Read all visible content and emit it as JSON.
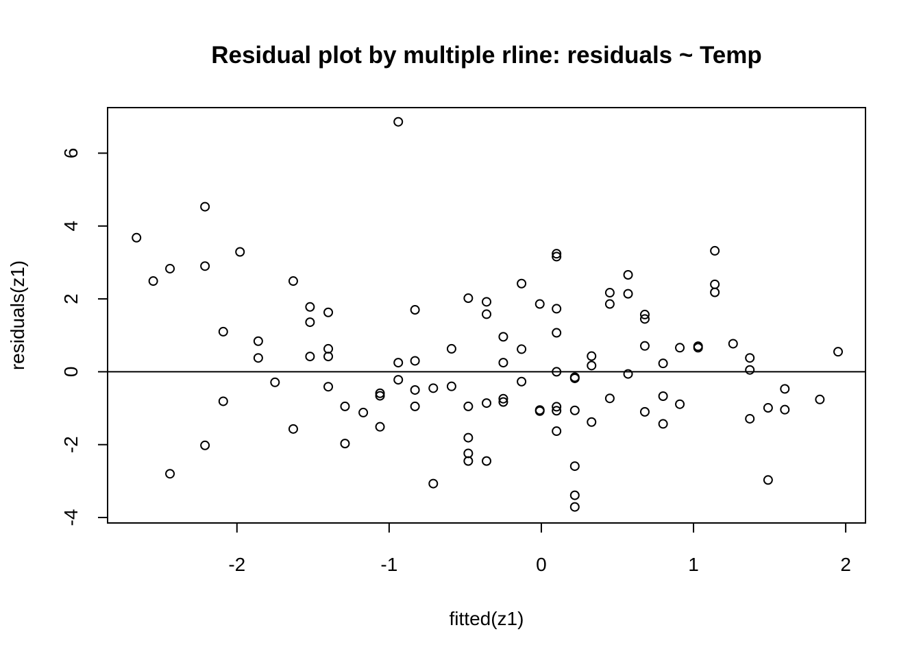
{
  "chart_data": {
    "type": "scatter",
    "title": "Residual plot by multiple rline: residuals ~ Temp",
    "xlabel": "fitted(z1)",
    "ylabel": "residuals(z1)",
    "xlim": [
      -2.85,
      2.13
    ],
    "ylim": [
      -4.15,
      7.25
    ],
    "xticks": [
      -2,
      -1,
      0,
      1,
      2
    ],
    "yticks": [
      -4,
      -2,
      0,
      2,
      4,
      6
    ],
    "xtick_labels": [
      "-2",
      "-1",
      "0",
      "1",
      "2"
    ],
    "ytick_labels": [
      "-4",
      "-2",
      "0",
      "2",
      "4",
      "6"
    ],
    "reference_line_y": 0,
    "grid": false,
    "legend": "none",
    "points": [
      [
        -2.66,
        3.68
      ],
      [
        -2.55,
        2.49
      ],
      [
        -2.44,
        2.83
      ],
      [
        -2.44,
        -2.8
      ],
      [
        -2.21,
        4.53
      ],
      [
        -2.21,
        2.9
      ],
      [
        -2.21,
        -2.02
      ],
      [
        -2.09,
        1.1
      ],
      [
        -2.09,
        -0.81
      ],
      [
        -1.98,
        3.29
      ],
      [
        -1.86,
        0.84
      ],
      [
        -1.86,
        0.38
      ],
      [
        -1.75,
        -0.29
      ],
      [
        -1.63,
        2.49
      ],
      [
        -1.63,
        -1.57
      ],
      [
        -1.52,
        1.78
      ],
      [
        -1.52,
        1.36
      ],
      [
        -1.52,
        0.42
      ],
      [
        -1.4,
        1.63
      ],
      [
        -1.4,
        0.63
      ],
      [
        -1.4,
        0.42
      ],
      [
        -1.4,
        -0.41
      ],
      [
        -1.29,
        -0.95
      ],
      [
        -1.29,
        -1.97
      ],
      [
        -1.17,
        -1.12
      ],
      [
        -1.06,
        -0.59
      ],
      [
        -1.06,
        -0.66
      ],
      [
        -1.06,
        -1.51
      ],
      [
        -0.94,
        6.86
      ],
      [
        -0.94,
        0.25
      ],
      [
        -0.94,
        -0.22
      ],
      [
        -0.83,
        1.7
      ],
      [
        -0.83,
        0.3
      ],
      [
        -0.83,
        -0.5
      ],
      [
        -0.83,
        -0.95
      ],
      [
        -0.71,
        -0.45
      ],
      [
        -0.71,
        -3.07
      ],
      [
        -0.59,
        0.63
      ],
      [
        -0.59,
        -0.4
      ],
      [
        -0.48,
        2.02
      ],
      [
        -0.48,
        -0.95
      ],
      [
        -0.48,
        -1.81
      ],
      [
        -0.48,
        -2.24
      ],
      [
        -0.48,
        -2.45
      ],
      [
        -0.36,
        1.92
      ],
      [
        -0.36,
        1.58
      ],
      [
        -0.36,
        -0.86
      ],
      [
        -0.36,
        -2.45
      ],
      [
        -0.25,
        0.96
      ],
      [
        -0.25,
        0.25
      ],
      [
        -0.25,
        -0.74
      ],
      [
        -0.25,
        -0.83
      ],
      [
        -0.13,
        2.42
      ],
      [
        -0.13,
        0.62
      ],
      [
        -0.13,
        -0.27
      ],
      [
        -0.01,
        1.86
      ],
      [
        -0.01,
        -1.05
      ],
      [
        -0.01,
        -1.08
      ],
      [
        0.1,
        3.24
      ],
      [
        0.1,
        3.16
      ],
      [
        0.1,
        1.73
      ],
      [
        0.1,
        1.07
      ],
      [
        0.1,
        0.0
      ],
      [
        0.1,
        -0.96
      ],
      [
        0.1,
        -1.07
      ],
      [
        0.1,
        -1.63
      ],
      [
        0.22,
        -0.15
      ],
      [
        0.22,
        -0.18
      ],
      [
        0.22,
        -1.06
      ],
      [
        0.22,
        -2.59
      ],
      [
        0.22,
        -3.39
      ],
      [
        0.22,
        -3.71
      ],
      [
        0.33,
        0.43
      ],
      [
        0.33,
        0.17
      ],
      [
        0.33,
        -1.38
      ],
      [
        0.45,
        2.17
      ],
      [
        0.45,
        1.86
      ],
      [
        0.45,
        -0.73
      ],
      [
        0.57,
        2.66
      ],
      [
        0.57,
        2.14
      ],
      [
        0.57,
        -0.06
      ],
      [
        0.68,
        1.57
      ],
      [
        0.68,
        1.45
      ],
      [
        0.68,
        0.71
      ],
      [
        0.68,
        -1.1
      ],
      [
        0.8,
        0.23
      ],
      [
        0.8,
        -0.67
      ],
      [
        0.8,
        -1.43
      ],
      [
        0.91,
        0.66
      ],
      [
        0.91,
        -0.89
      ],
      [
        1.03,
        0.7
      ],
      [
        1.03,
        0.66
      ],
      [
        1.14,
        3.32
      ],
      [
        1.14,
        2.4
      ],
      [
        1.14,
        2.18
      ],
      [
        1.26,
        0.77
      ],
      [
        1.37,
        0.38
      ],
      [
        1.37,
        0.05
      ],
      [
        1.37,
        -1.29
      ],
      [
        1.49,
        -0.99
      ],
      [
        1.49,
        -2.97
      ],
      [
        1.6,
        -0.47
      ],
      [
        1.6,
        -1.04
      ],
      [
        1.83,
        -0.76
      ],
      [
        1.95,
        0.55
      ]
    ]
  }
}
